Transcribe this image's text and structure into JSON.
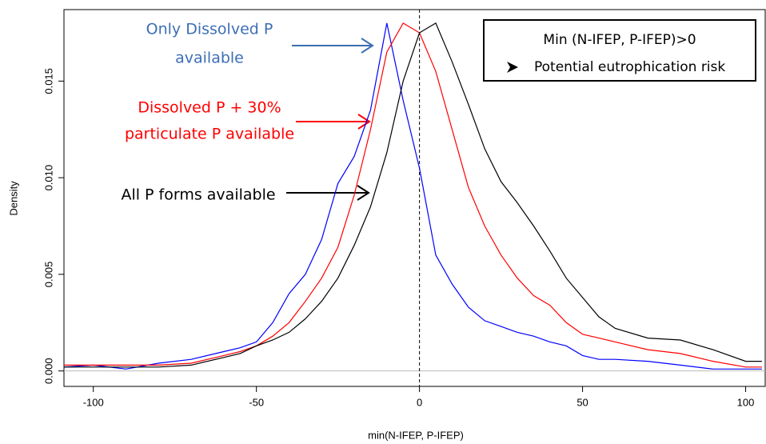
{
  "chart_data": {
    "type": "line",
    "x_label": "min(N-IFEP, P-IFEP)",
    "y_label": "Density",
    "xlim": [
      -109,
      106
    ],
    "ylim": [
      -0.0008,
      0.0187
    ],
    "xticks": [
      -100,
      -50,
      0,
      50,
      100
    ],
    "yticks": [
      {
        "value": 0,
        "label": "0.000"
      },
      0.005,
      {
        "value": 0.01,
        "label": "0.010"
      },
      0.015
    ],
    "vline": 0,
    "hline": 0,
    "x": [
      -109,
      -100,
      -90,
      -80,
      -70,
      -60,
      -55,
      -50,
      -45,
      -40,
      -35,
      -30,
      -25,
      -20,
      -15,
      -10,
      -5,
      0,
      5,
      10,
      15,
      20,
      25,
      30,
      35,
      40,
      45,
      50,
      55,
      60,
      70,
      80,
      90,
      100,
      105
    ],
    "series": [
      {
        "name": "Only Dissolved P",
        "color": "#0000ff",
        "values": [
          0.0002,
          0.0003,
          0.0001,
          0.0004,
          0.0006,
          0.001,
          0.0012,
          0.0015,
          0.0025,
          0.004,
          0.005,
          0.0068,
          0.0097,
          0.0111,
          0.0135,
          0.018,
          0.014,
          0.0105,
          0.006,
          0.0045,
          0.0033,
          0.0026,
          0.0023,
          0.002,
          0.0018,
          0.0015,
          0.0013,
          0.0008,
          0.0006,
          0.0006,
          0.0005,
          0.0003,
          0.0001,
          0.0001,
          0.0001
        ]
      },
      {
        "name": "Dissolved P + 30% particulate P",
        "color": "#ff0000",
        "values": [
          0.0003,
          0.0003,
          0.0003,
          0.0003,
          0.0004,
          0.0008,
          0.001,
          0.0013,
          0.0018,
          0.0025,
          0.0036,
          0.0048,
          0.0064,
          0.0091,
          0.0125,
          0.0165,
          0.018,
          0.0175,
          0.0155,
          0.0125,
          0.0095,
          0.0075,
          0.006,
          0.0048,
          0.0039,
          0.0034,
          0.0025,
          0.0019,
          0.0017,
          0.0015,
          0.0011,
          0.0009,
          0.0005,
          0.0002,
          0.0002
        ]
      },
      {
        "name": "All P forms",
        "color": "#000000",
        "values": [
          0.0002,
          0.0002,
          0.0002,
          0.0002,
          0.0003,
          0.0007,
          0.0009,
          0.0013,
          0.0016,
          0.002,
          0.0027,
          0.0036,
          0.0048,
          0.0065,
          0.0085,
          0.0113,
          0.015,
          0.0175,
          0.018,
          0.016,
          0.0138,
          0.0115,
          0.0098,
          0.0087,
          0.0075,
          0.0062,
          0.0048,
          0.0038,
          0.0028,
          0.0022,
          0.0017,
          0.0016,
          0.0011,
          0.0005,
          0.0005
        ]
      }
    ],
    "annotations": [
      {
        "lines": [
          "Only Dissolved P",
          "available"
        ],
        "color": "#3d6eb4"
      },
      {
        "lines": [
          "Dissolved P + 30%",
          "particulate P available"
        ],
        "color": "#ff0000"
      },
      {
        "lines": [
          "All P forms available"
        ],
        "color": "#000000"
      }
    ],
    "box": {
      "title": "Min (N-IFEP, P-IFEP)>0",
      "bullet": "Potential eutrophication risk"
    }
  }
}
